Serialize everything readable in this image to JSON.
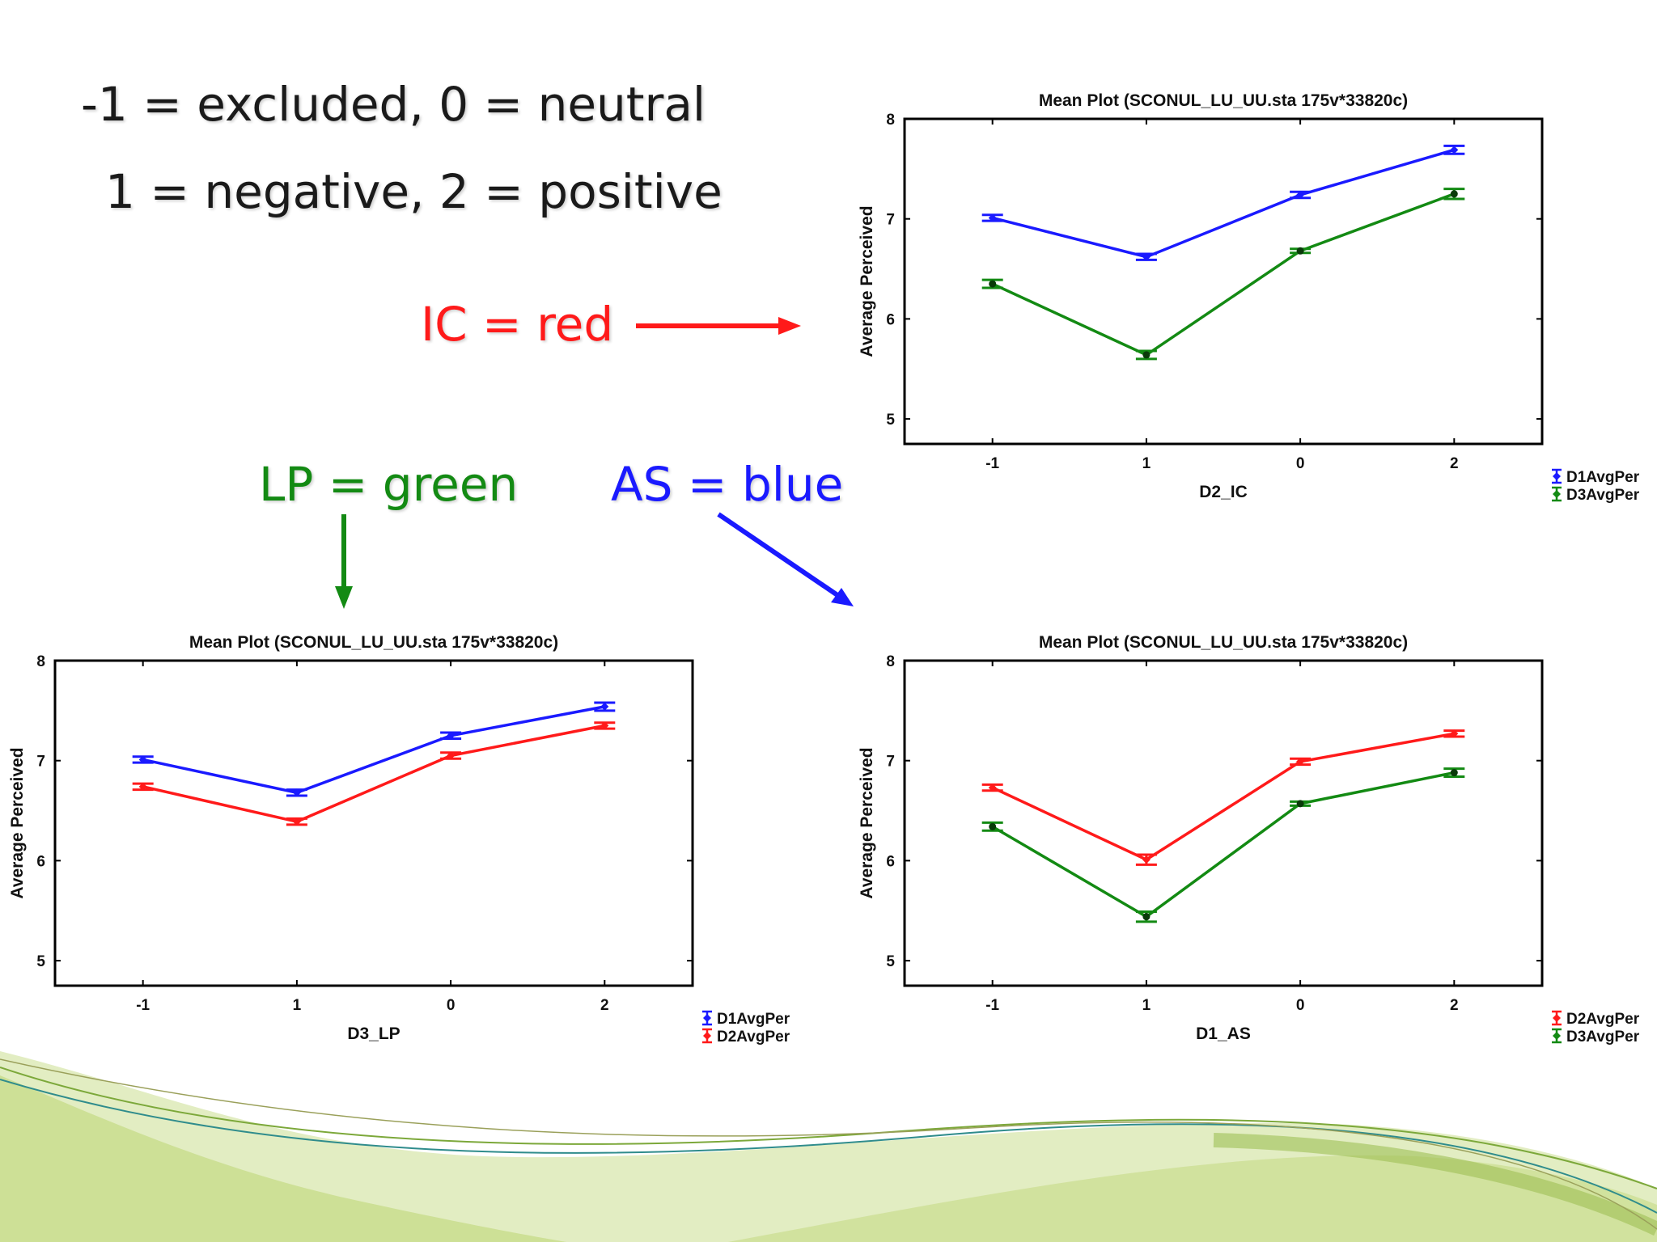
{
  "slide": {
    "legend_line_1": "-1 = excluded, 0 = neutral",
    "legend_line_2": "1 = negative, 2 = positive",
    "ic_label": "IC = red",
    "lp_label": "LP = green",
    "as_label": "AS = blue",
    "colors": {
      "red": "#ff1a1a",
      "green": "#138a13",
      "blue": "#1a1aff",
      "text": "#1a1a1a",
      "swoosh_light": "#d6e6a8",
      "swoosh_mid": "#b8d47a"
    }
  },
  "chart_data": [
    {
      "id": "ic",
      "type": "line",
      "title": "Mean Plot (SCONUL_LU_UU.sta 175v*33820c)",
      "xlabel": "D2_IC",
      "ylabel": "Average Perceived",
      "categories": [
        "-1",
        "1",
        "0",
        "2"
      ],
      "ylim": [
        4.75,
        8
      ],
      "yticks": [
        5,
        6,
        7,
        8
      ],
      "legend_position": "right, below plot",
      "series": [
        {
          "name": "D1AvgPer",
          "color": "#1a1aff",
          "marker": "diamond",
          "values": [
            7.01,
            6.62,
            7.24,
            7.69
          ],
          "errors": [
            0.03,
            0.03,
            0.03,
            0.04
          ]
        },
        {
          "name": "D3AvgPer",
          "color": "#138a13",
          "marker": "dot",
          "values": [
            6.35,
            5.64,
            6.68,
            7.25
          ],
          "errors": [
            0.04,
            0.04,
            0.02,
            0.05
          ]
        }
      ]
    },
    {
      "id": "lp",
      "type": "line",
      "title": "Mean Plot (SCONUL_LU_UU.sta 175v*33820c)",
      "xlabel": "D3_LP",
      "ylabel": "Average Perceived",
      "categories": [
        "-1",
        "1",
        "0",
        "2"
      ],
      "ylim": [
        4.75,
        8
      ],
      "yticks": [
        5,
        6,
        7,
        8
      ],
      "legend_position": "right, below plot",
      "series": [
        {
          "name": "D1AvgPer",
          "color": "#1a1aff",
          "marker": "diamond",
          "values": [
            7.01,
            6.68,
            7.25,
            7.54
          ],
          "errors": [
            0.03,
            0.03,
            0.03,
            0.04
          ]
        },
        {
          "name": "D2AvgPer",
          "color": "#ff1a1a",
          "marker": "diamond",
          "values": [
            6.74,
            6.39,
            7.05,
            7.35
          ],
          "errors": [
            0.03,
            0.03,
            0.03,
            0.03
          ]
        }
      ]
    },
    {
      "id": "as",
      "type": "line",
      "title": "Mean Plot (SCONUL_LU_UU.sta 175v*33820c)",
      "xlabel": "D1_AS",
      "ylabel": "Average Perceived",
      "categories": [
        "-1",
        "1",
        "0",
        "2"
      ],
      "ylim": [
        4.75,
        8
      ],
      "yticks": [
        5,
        6,
        7,
        8
      ],
      "legend_position": "right, below plot",
      "series": [
        {
          "name": "D2AvgPer",
          "color": "#ff1a1a",
          "marker": "diamond",
          "values": [
            6.73,
            6.01,
            6.99,
            7.27
          ],
          "errors": [
            0.03,
            0.05,
            0.03,
            0.03
          ]
        },
        {
          "name": "D3AvgPer",
          "color": "#138a13",
          "marker": "dot",
          "values": [
            6.34,
            5.44,
            6.57,
            6.88
          ],
          "errors": [
            0.04,
            0.05,
            0.02,
            0.04
          ]
        }
      ]
    }
  ]
}
